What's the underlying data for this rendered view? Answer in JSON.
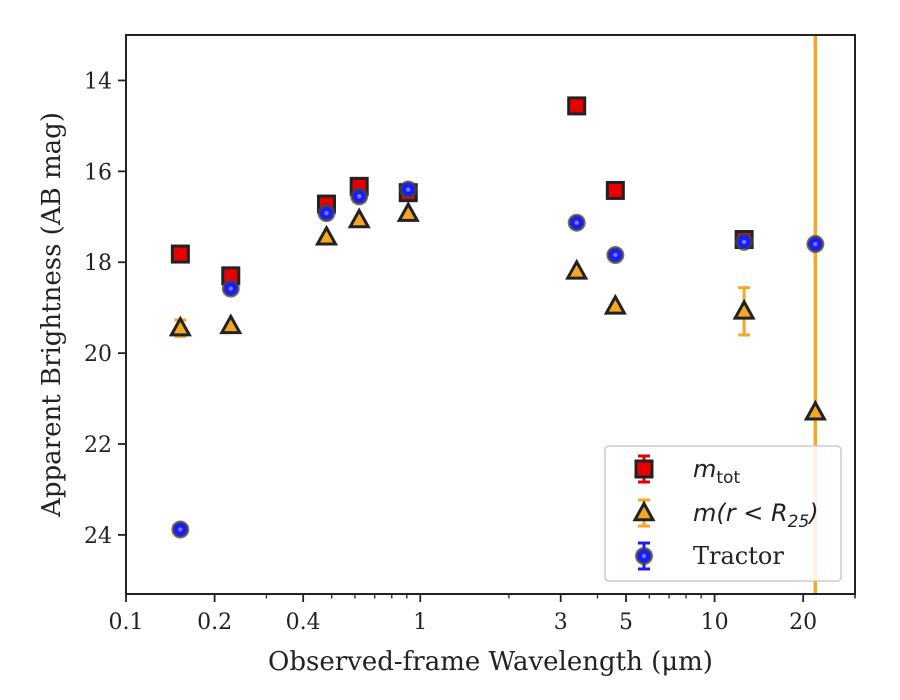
{
  "chart_data": {
    "type": "scatter",
    "title": "",
    "xlabel": "Observed-frame Wavelength (μm)",
    "ylabel": "Apparent Brightness (AB mag)",
    "xscale": "log",
    "xlim": [
      0.1,
      30
    ],
    "ylim": [
      25.3,
      13.0
    ],
    "y_inverted": true,
    "grid": false,
    "x_ticks": [
      0.1,
      0.2,
      0.4,
      1,
      3,
      5,
      10,
      20
    ],
    "x_tick_labels": [
      "0.1",
      "0.2",
      "0.4",
      "1",
      "3",
      "5",
      "10",
      "20"
    ],
    "y_ticks": [
      14,
      16,
      18,
      20,
      22,
      24
    ],
    "y_tick_labels": [
      "14",
      "16",
      "18",
      "20",
      "22",
      "24"
    ],
    "legend_position": "lower-right",
    "vertical_line": {
      "x": 22,
      "color": "#f5a623"
    },
    "series": [
      {
        "name": "m_tot",
        "legend_label": "m",
        "legend_sub": "tot",
        "marker": "square",
        "color": "#e60000",
        "edge": "#222222",
        "points": [
          {
            "x": 0.153,
            "y": 17.82
          },
          {
            "x": 0.227,
            "y": 18.3
          },
          {
            "x": 0.48,
            "y": 16.72
          },
          {
            "x": 0.62,
            "y": 16.33
          },
          {
            "x": 0.91,
            "y": 16.47
          },
          {
            "x": 3.4,
            "y": 14.56
          },
          {
            "x": 4.6,
            "y": 16.42
          },
          {
            "x": 12.6,
            "y": 17.5
          }
        ]
      },
      {
        "name": "m(r < R25)",
        "legend_label": "m(r < R",
        "legend_sub": "25",
        "legend_close": ")",
        "marker": "triangle",
        "color": "#f5a623",
        "edge": "#222222",
        "points": [
          {
            "x": 0.153,
            "y": 19.45,
            "err": 0.18
          },
          {
            "x": 0.227,
            "y": 19.4
          },
          {
            "x": 0.48,
            "y": 17.45
          },
          {
            "x": 0.62,
            "y": 17.07
          },
          {
            "x": 0.91,
            "y": 16.93
          },
          {
            "x": 3.4,
            "y": 18.2
          },
          {
            "x": 4.6,
            "y": 18.97
          },
          {
            "x": 12.6,
            "y": 19.08,
            "err": 0.52
          },
          {
            "x": 22.0,
            "y": 21.3
          }
        ]
      },
      {
        "name": "Tractor",
        "legend_label": "Tractor",
        "marker": "circle",
        "color": "#1a1aff",
        "edge": "#444444",
        "points": [
          {
            "x": 0.153,
            "y": 23.88
          },
          {
            "x": 0.227,
            "y": 18.58
          },
          {
            "x": 0.48,
            "y": 16.92
          },
          {
            "x": 0.62,
            "y": 16.55
          },
          {
            "x": 0.91,
            "y": 16.4
          },
          {
            "x": 3.4,
            "y": 17.13
          },
          {
            "x": 4.6,
            "y": 17.84
          },
          {
            "x": 12.6,
            "y": 17.55
          },
          {
            "x": 22.0,
            "y": 17.6
          }
        ]
      }
    ]
  }
}
